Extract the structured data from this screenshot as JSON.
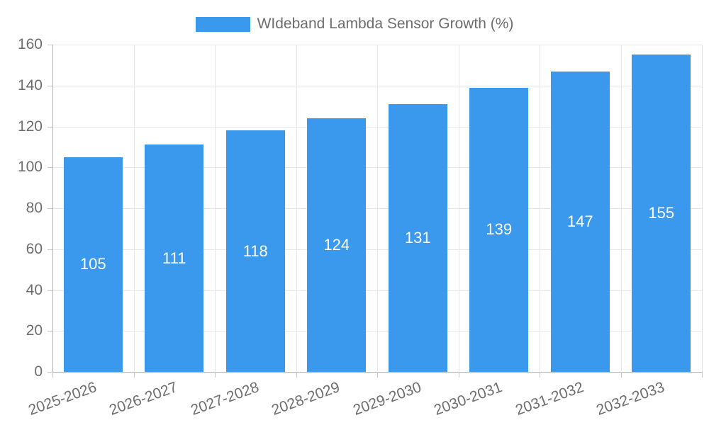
{
  "legend": {
    "label": "WIdeband Lambda Sensor Growth (%)"
  },
  "chart_data": {
    "type": "bar",
    "title": "WIdeband Lambda Sensor Growth (%)",
    "categories": [
      "2025-2026",
      "2026-2027",
      "2027-2028",
      "2028-2029",
      "2029-2030",
      "2030-2031",
      "2031-2032",
      "2032-2033"
    ],
    "series": [
      {
        "name": "WIdeband Lambda Sensor Growth (%)",
        "values": [
          105,
          111,
          118,
          124,
          131,
          139,
          147,
          155
        ]
      }
    ],
    "value_labels_shown": true,
    "xlabel": "",
    "ylabel": "",
    "ylim": [
      0,
      160
    ],
    "yticks": [
      0,
      20,
      40,
      60,
      80,
      100,
      120,
      140,
      160
    ],
    "grid": true,
    "legend_position": "top",
    "colors": {
      "bar": "#3b99ed",
      "value_label": "#ffffff",
      "axis_text": "#6e6e6e",
      "grid_line": "#e6e6e6",
      "axis_line": "#b3b3b3",
      "tick_mark": "#c9c9c9",
      "background": "#ffffff"
    }
  }
}
